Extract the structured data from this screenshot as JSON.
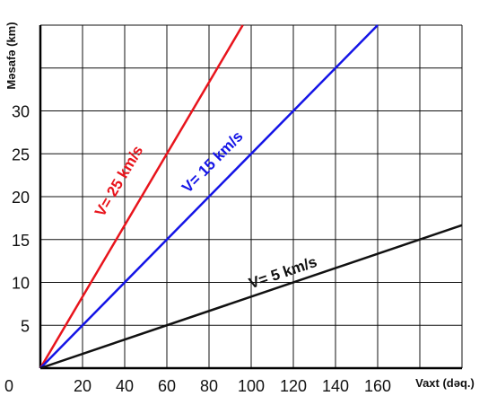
{
  "chart_data": {
    "type": "line",
    "xlabel": "Vaxt (dəq.)",
    "ylabel": "Məsafə (km)",
    "origin_label": "0",
    "x_ticks": [
      20,
      40,
      60,
      80,
      100,
      120,
      140,
      160
    ],
    "y_ticks": [
      5,
      10,
      15,
      20,
      25,
      30
    ],
    "xlim": [
      0,
      200
    ],
    "ylim": [
      0,
      40
    ],
    "grid": true,
    "series": [
      {
        "name": "V= 25 km/s",
        "color": "#e8141c",
        "x": [
          0,
          96
        ],
        "y": [
          0,
          40
        ]
      },
      {
        "name": "V= 15 km/s",
        "color": "#1414e6",
        "x": [
          0,
          160
        ],
        "y": [
          0,
          40
        ]
      },
      {
        "name": "V= 5 km/s",
        "color": "#111111",
        "x": [
          0,
          200
        ],
        "y": [
          0,
          16.67
        ]
      }
    ]
  }
}
